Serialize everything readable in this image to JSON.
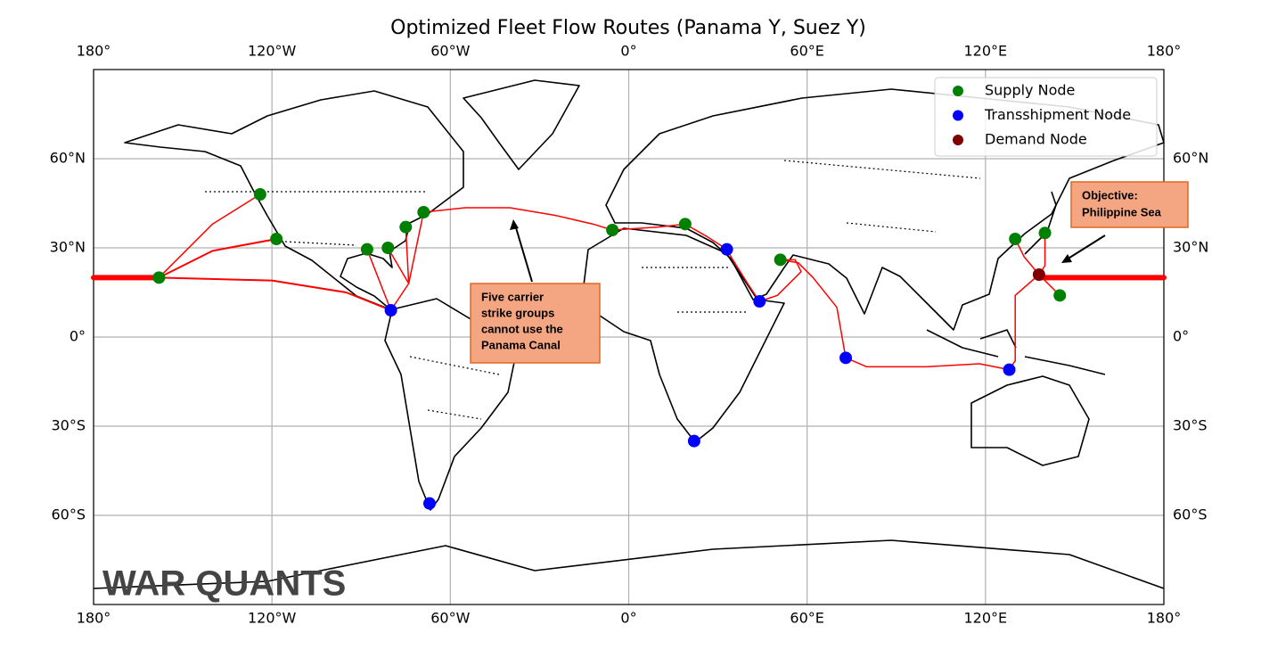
{
  "chart_data": {
    "type": "map",
    "title": "Optimized Fleet Flow Routes (Panama Y, Suez Y)",
    "xlim": [
      -180,
      180
    ],
    "ylim": [
      -90,
      90
    ],
    "xticks": [
      {
        "value": -180,
        "label": "180°"
      },
      {
        "value": -120,
        "label": "120°W"
      },
      {
        "value": -60,
        "label": "60°W"
      },
      {
        "value": 0,
        "label": "0°"
      },
      {
        "value": 60,
        "label": "60°E"
      },
      {
        "value": 120,
        "label": "120°E"
      },
      {
        "value": 180,
        "label": "180°"
      }
    ],
    "yticks": [
      {
        "value": -60,
        "label": "60°S"
      },
      {
        "value": -30,
        "label": "30°S"
      },
      {
        "value": 0,
        "label": "0°"
      },
      {
        "value": 30,
        "label": "30°N"
      },
      {
        "value": 60,
        "label": "60°N"
      }
    ],
    "grid": true,
    "legend": "upper right",
    "route_color": "#ff0000",
    "series": [
      {
        "name": "Supply Node",
        "color": "#008000",
        "x": [
          -158,
          -124,
          -118.5,
          -88,
          -81,
          -75,
          -69,
          -5.5,
          19,
          51,
          130,
          140,
          145
        ],
        "y": [
          20,
          48,
          33,
          29.5,
          30,
          37,
          42,
          36,
          38,
          26,
          33,
          35,
          14
        ]
      },
      {
        "name": "Transshipment Node",
        "color": "#0000ff",
        "x": [
          -80,
          33,
          44,
          73,
          128,
          22,
          -67
        ],
        "y": [
          9,
          29.5,
          12,
          -7,
          -11,
          -35,
          -56
        ]
      },
      {
        "name": "Demand Node",
        "color": "#800000",
        "x": [
          138
        ],
        "y": [
          21
        ]
      }
    ],
    "routes": [
      {
        "linewidth": 6,
        "x": [
          138,
          180,
          null,
          -180,
          -158
        ],
        "y": [
          20,
          20,
          null,
          20,
          20
        ]
      },
      {
        "linewidth": 1.5,
        "x": [
          -158,
          -140,
          -124
        ],
        "y": [
          20,
          38,
          48
        ]
      },
      {
        "linewidth": 2,
        "x": [
          -158,
          -140,
          -118.5
        ],
        "y": [
          20,
          29,
          33
        ]
      },
      {
        "linewidth": 2,
        "x": [
          -158,
          -120,
          -95,
          -80
        ],
        "y": [
          20,
          19,
          15,
          9
        ]
      },
      {
        "linewidth": 1.5,
        "x": [
          -88,
          -80
        ],
        "y": [
          29.5,
          9
        ]
      },
      {
        "linewidth": 1.5,
        "x": [
          -81,
          -74,
          -80
        ],
        "y": [
          30,
          18,
          9
        ]
      },
      {
        "linewidth": 1.5,
        "x": [
          -75,
          -74
        ],
        "y": [
          37,
          18
        ]
      },
      {
        "linewidth": 1.5,
        "x": [
          -69,
          -74
        ],
        "y": [
          42,
          18
        ]
      },
      {
        "linewidth": 1.5,
        "x": [
          -69,
          -55,
          -40,
          -25,
          -12,
          -5.5
        ],
        "y": [
          42,
          43.5,
          43.5,
          41,
          38,
          36
        ]
      },
      {
        "linewidth": 1.5,
        "x": [
          -5.5,
          10,
          19,
          26,
          33,
          35,
          40,
          44,
          50,
          58,
          56,
          51
        ],
        "y": [
          36,
          37,
          38,
          34,
          29.5,
          26,
          18,
          12,
          14,
          22,
          26,
          26
        ]
      },
      {
        "linewidth": 1.5,
        "x": [
          51,
          57,
          62,
          70,
          73,
          80,
          100,
          118,
          128
        ],
        "y": [
          26,
          25,
          20,
          10,
          -7,
          -10,
          -10,
          -9,
          -11
        ]
      },
      {
        "linewidth": 1.5,
        "x": [
          128,
          130,
          130,
          138
        ],
        "y": [
          -11,
          -8,
          14,
          21
        ]
      },
      {
        "linewidth": 1.5,
        "x": [
          138,
          133,
          130
        ],
        "y": [
          21,
          27,
          33
        ]
      },
      {
        "linewidth": 1.5,
        "x": [
          138,
          140,
          140
        ],
        "y": [
          21,
          24,
          35
        ]
      },
      {
        "linewidth": 1.5,
        "x": [
          138,
          145
        ],
        "y": [
          21,
          14
        ]
      }
    ],
    "annotations": [
      {
        "lines": [
          "Five carrier",
          "strike groups",
          "cannot use the",
          "Panama Canal"
        ]
      },
      {
        "lines": [
          "Objective:",
          "Philippine Sea"
        ]
      }
    ],
    "watermark": "WAR QUANTS"
  }
}
